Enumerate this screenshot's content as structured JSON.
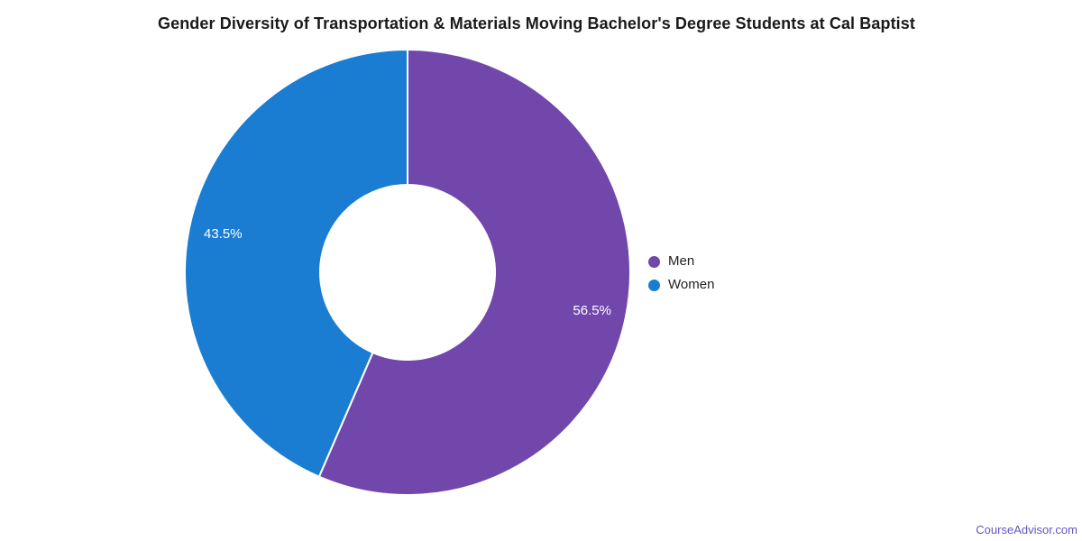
{
  "chart": {
    "title": "Gender Diversity of Transportation & Materials Moving Bachelor's Degree Students at Cal Baptist"
  },
  "chart_data": {
    "type": "pie",
    "subtype": "donut",
    "title": "Gender Diversity of Transportation & Materials Moving Bachelor's Degree Students at Cal Baptist",
    "series": [
      {
        "name": "Men",
        "value": 56.5,
        "label": "56.5%",
        "color": "#7247ab"
      },
      {
        "name": "Women",
        "value": 43.5,
        "label": "43.5%",
        "color": "#1a7dd2"
      }
    ],
    "start_angle_deg": 0,
    "direction": "clockwise",
    "labels_inside": true,
    "label_text_color": "#ffffff",
    "slice_border_color": "#ffffff",
    "legend_position": "right",
    "legend_marker_shape": "circle"
  },
  "watermark": {
    "text": "CourseAdvisor.com",
    "color": "#6156c5"
  }
}
